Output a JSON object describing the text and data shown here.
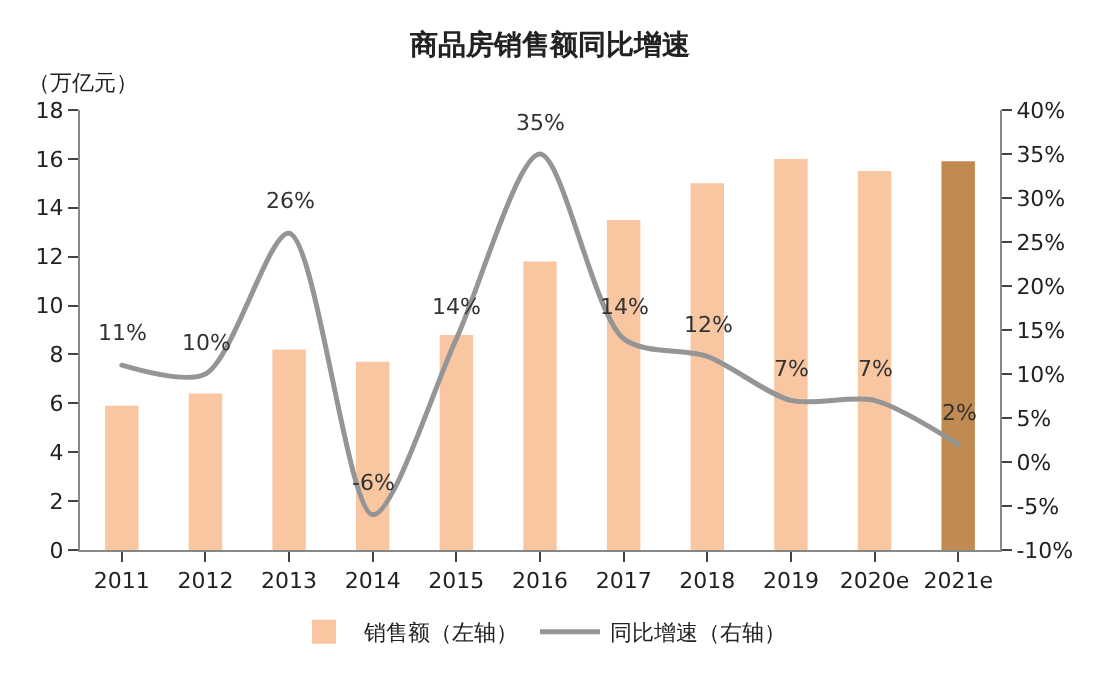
{
  "chart_data": {
    "type": "bar",
    "title": "商品房销售额同比增速",
    "ylabel": "（万亿元）",
    "categories": [
      "2011",
      "2012",
      "2013",
      "2014",
      "2015",
      "2016",
      "2017",
      "2018",
      "2019",
      "2020e",
      "2021e"
    ],
    "series": [
      {
        "name": "销售额（左轴）",
        "color": "#f8c6a0",
        "colors": [
          "#f8c6a0",
          "#f8c6a0",
          "#f8c6a0",
          "#f8c6a0",
          "#f8c6a0",
          "#f8c6a0",
          "#f8c6a0",
          "#f8c6a0",
          "#f8c6a0",
          "#f8c6a0",
          "#c08a50"
        ],
        "values": [
          5.9,
          6.4,
          8.2,
          7.7,
          8.8,
          11.8,
          13.5,
          15.0,
          16.0,
          15.5,
          15.9
        ]
      },
      {
        "name": "同比增速（右轴）",
        "type": "line",
        "axis": "y2",
        "color": "#959595",
        "values": [
          11,
          10,
          26,
          -6,
          14,
          35,
          14,
          12,
          7,
          7,
          2
        ],
        "value_labels": [
          "11%",
          "10%",
          "26%",
          "-6%",
          "14%",
          "35%",
          "14%",
          "12%",
          "7%",
          "7%",
          "2%"
        ]
      }
    ],
    "ylim": [
      0,
      18
    ],
    "yticks": [
      0,
      2,
      4,
      6,
      8,
      10,
      12,
      14,
      16,
      18
    ],
    "y2lim": [
      -10,
      40
    ],
    "y2ticks": [
      {
        "value": -10,
        "label": "-10%"
      },
      {
        "value": -5,
        "label": "-5%"
      },
      {
        "value": 0,
        "label": "0%"
      },
      {
        "value": 5,
        "label": "5%"
      },
      {
        "value": 10,
        "label": "10%"
      },
      {
        "value": 15,
        "label": "15%"
      },
      {
        "value": 20,
        "label": "20%"
      },
      {
        "value": 25,
        "label": "25%"
      },
      {
        "value": 30,
        "label": "30%"
      },
      {
        "value": 35,
        "label": "35%"
      },
      {
        "value": 40,
        "label": "40%"
      }
    ],
    "legend": "bottom",
    "marker": "none",
    "line_style": "solid"
  }
}
